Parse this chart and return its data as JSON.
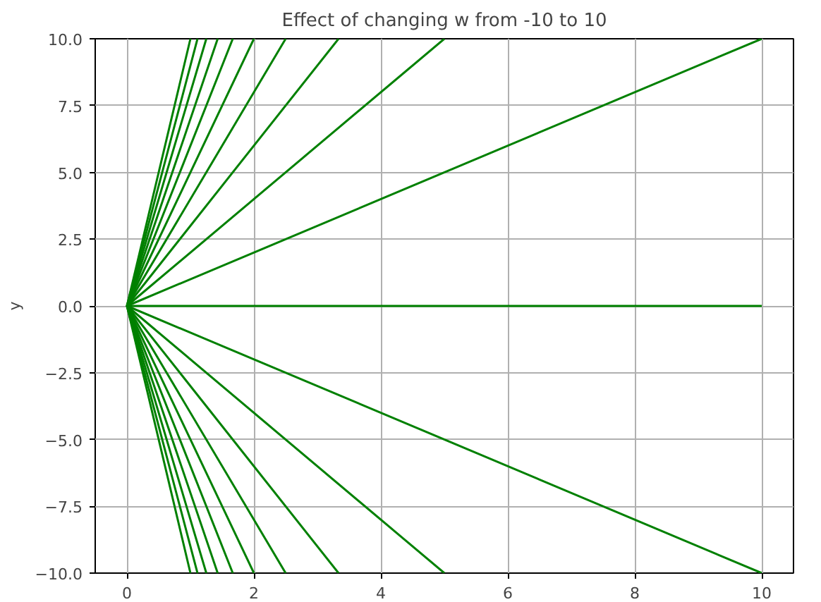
{
  "chart_data": {
    "type": "line",
    "title": "Effect of changing w from -10 to 10",
    "ylabel": "y",
    "xlim": [
      -0.5,
      10.5
    ],
    "xticks": [
      0,
      2,
      4,
      6,
      8,
      10
    ],
    "ylim": [
      -10,
      10
    ],
    "yticks": [
      {
        "value": -10,
        "label": "−10.0"
      },
      {
        "value": -7.5,
        "label": "−7.5"
      },
      {
        "value": -5,
        "label": "−5.0"
      },
      {
        "value": -2.5,
        "label": "−2.5"
      },
      {
        "value": 0,
        "label": "0.0"
      },
      {
        "value": 2.5,
        "label": "2.5"
      },
      {
        "value": 5,
        "label": "5.0"
      },
      {
        "value": 7.5,
        "label": "7.5"
      },
      {
        "value": 10,
        "label": "10.0"
      }
    ],
    "grid": true,
    "line_style": "solid",
    "series": [
      {
        "color": "#008000",
        "x": [
          0,
          1
        ],
        "values": [
          0,
          -10
        ]
      },
      {
        "color": "#008000",
        "x": [
          0,
          1.111
        ],
        "values": [
          0,
          -10
        ]
      },
      {
        "color": "#008000",
        "x": [
          0,
          1.25
        ],
        "values": [
          0,
          -10
        ]
      },
      {
        "color": "#008000",
        "x": [
          0,
          1.429
        ],
        "values": [
          0,
          -10
        ]
      },
      {
        "color": "#008000",
        "x": [
          0,
          1.667
        ],
        "values": [
          0,
          -10
        ]
      },
      {
        "color": "#008000",
        "x": [
          0,
          2
        ],
        "values": [
          0,
          -10
        ]
      },
      {
        "color": "#008000",
        "x": [
          0,
          2.5
        ],
        "values": [
          0,
          -10
        ]
      },
      {
        "color": "#008000",
        "x": [
          0,
          3.333
        ],
        "values": [
          0,
          -10
        ]
      },
      {
        "color": "#008000",
        "x": [
          0,
          5
        ],
        "values": [
          0,
          -10
        ]
      },
      {
        "color": "#008000",
        "x": [
          0,
          10
        ],
        "values": [
          0,
          -10
        ]
      },
      {
        "color": "#008000",
        "x": [
          0,
          10
        ],
        "values": [
          0,
          0
        ]
      },
      {
        "color": "#008000",
        "x": [
          0,
          10
        ],
        "values": [
          0,
          10
        ]
      },
      {
        "color": "#008000",
        "x": [
          0,
          5
        ],
        "values": [
          0,
          10
        ]
      },
      {
        "color": "#008000",
        "x": [
          0,
          3.333
        ],
        "values": [
          0,
          10
        ]
      },
      {
        "color": "#008000",
        "x": [
          0,
          2.5
        ],
        "values": [
          0,
          10
        ]
      },
      {
        "color": "#008000",
        "x": [
          0,
          2
        ],
        "values": [
          0,
          10
        ]
      },
      {
        "color": "#008000",
        "x": [
          0,
          1.667
        ],
        "values": [
          0,
          10
        ]
      },
      {
        "color": "#008000",
        "x": [
          0,
          1.429
        ],
        "values": [
          0,
          10
        ]
      },
      {
        "color": "#008000",
        "x": [
          0,
          1.25
        ],
        "values": [
          0,
          10
        ]
      },
      {
        "color": "#008000",
        "x": [
          0,
          1.111
        ],
        "values": [
          0,
          10
        ]
      },
      {
        "color": "#008000",
        "x": [
          0,
          1
        ],
        "values": [
          0,
          10
        ]
      }
    ]
  }
}
